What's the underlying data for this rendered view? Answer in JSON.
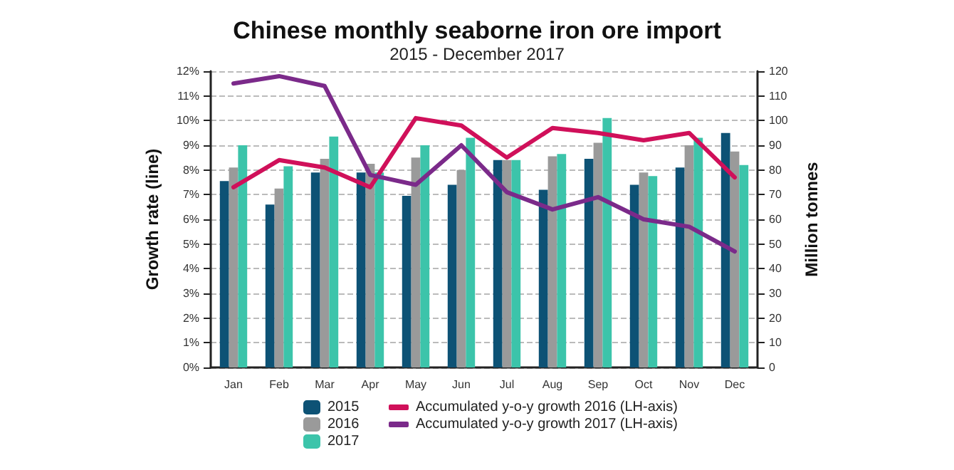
{
  "chart_data": {
    "type": "bar",
    "title": "Chinese monthly seaborne iron ore import",
    "subtitle": "2015 - December 2017",
    "ylabel": "Growth rate (line)",
    "y2label": "Million tonnes",
    "categories": [
      "Jan",
      "Feb",
      "Mar",
      "Apr",
      "May",
      "Jun",
      "Jul",
      "Aug",
      "Sep",
      "Oct",
      "Nov",
      "Dec"
    ],
    "series": [
      {
        "name": "2015",
        "axis": "y2",
        "color": "#0d5275",
        "values": [
          75.5,
          66,
          79,
          79,
          69.5,
          74,
          84,
          72,
          84.5,
          74,
          81,
          95
        ]
      },
      {
        "name": "2016",
        "axis": "y2",
        "color": "#9a9a9a",
        "values": [
          81,
          72.5,
          84.5,
          82.5,
          85,
          80,
          84,
          85.5,
          91,
          79,
          90,
          87.5
        ]
      },
      {
        "name": "2017",
        "axis": "y2",
        "color": "#3cc4aa",
        "values": [
          90,
          81.5,
          93.5,
          79,
          90,
          93,
          84,
          86.5,
          101,
          77.5,
          93,
          82
        ]
      },
      {
        "name": "Accumulated y-o-y growth 2016 (LH-axis)",
        "type": "line",
        "axis": "y",
        "color": "#d0105a",
        "values": [
          7.3,
          8.4,
          8.1,
          7.3,
          10.1,
          9.8,
          8.5,
          9.7,
          9.5,
          9.2,
          9.5,
          7.7
        ]
      },
      {
        "name": "Accumulated y-o-y growth 2017 (LH-axis)",
        "type": "line",
        "axis": "y",
        "color": "#7b2a8a",
        "values": [
          11.5,
          11.8,
          11.4,
          7.8,
          7.4,
          9.0,
          7.1,
          6.4,
          6.9,
          6.0,
          5.7,
          4.7
        ]
      }
    ],
    "ylim": [
      0,
      12
    ],
    "yticks": [
      {
        "value": 0,
        "label": "0%"
      },
      {
        "value": 1,
        "label": "1%"
      },
      {
        "value": 2,
        "label": "2%"
      },
      {
        "value": 3,
        "label": "3%"
      },
      {
        "value": 4,
        "label": "4%"
      },
      {
        "value": 5,
        "label": "5%"
      },
      {
        "value": 6,
        "label": "6%"
      },
      {
        "value": 7,
        "label": "7%"
      },
      {
        "value": 8,
        "label": "8%"
      },
      {
        "value": 9,
        "label": "9%"
      },
      {
        "value": 10,
        "label": "10%"
      },
      {
        "value": 11,
        "label": "11%"
      },
      {
        "value": 12,
        "label": "12%"
      }
    ],
    "y2lim": [
      0,
      120
    ],
    "y2ticks": [
      0,
      10,
      20,
      30,
      40,
      50,
      60,
      70,
      80,
      90,
      100,
      110,
      120
    ],
    "grid": "y",
    "legend": "bottom",
    "marker": "none",
    "line_style": "solid"
  }
}
